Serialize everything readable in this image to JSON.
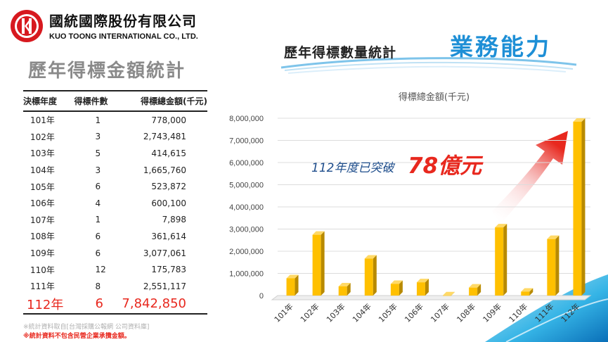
{
  "header": {
    "company_zh": "國統國際股份有限公司",
    "company_en": "KUO TOONG INTERNATIONAL CO., LTD."
  },
  "left": {
    "title": "歷年得標金額統計",
    "columns": [
      "決標年度",
      "得標件數",
      "得標總金額(千元)"
    ],
    "rows": [
      [
        "101年",
        "1",
        "778,000"
      ],
      [
        "102年",
        "3",
        "2,743,481"
      ],
      [
        "103年",
        "5",
        "414,615"
      ],
      [
        "104年",
        "3",
        "1,665,760"
      ],
      [
        "105年",
        "6",
        "523,872"
      ],
      [
        "106年",
        "4",
        "600,100"
      ],
      [
        "107年",
        "1",
        "7,898"
      ],
      [
        "108年",
        "6",
        "361,614"
      ],
      [
        "109年",
        "6",
        "3,077,061"
      ],
      [
        "110年",
        "12",
        "175,783"
      ],
      [
        "111年",
        "8",
        "2,551,117"
      ],
      [
        "112年",
        "6",
        "7,842,850"
      ]
    ],
    "note1": "※統計資料取自[台灣採購公報網 公司資料庫]",
    "note2": "※統計資料不包含民營企業承攬金額。"
  },
  "right": {
    "title": "歷年得標數量統計",
    "accent": "業務能力",
    "annotation_text": "112年度已突破",
    "annotation_value": "78億元"
  },
  "colors": {
    "bar_front": "#ffc000",
    "bar_side": "#b88a00",
    "bar_top": "#ffd966",
    "accent_blue": "#1e8fd6",
    "highlight_red": "#e8281e"
  },
  "chart_data": {
    "type": "bar",
    "title": "得標總金額(千元)",
    "categories": [
      "101年",
      "102年",
      "103年",
      "104年",
      "105年",
      "106年",
      "107年",
      "108年",
      "109年",
      "110年",
      "111年",
      "112年"
    ],
    "values": [
      778000,
      2743481,
      414615,
      1665760,
      523872,
      600100,
      7898,
      361614,
      3077061,
      175783,
      2551117,
      7842850
    ],
    "ylim": [
      0,
      8000000
    ],
    "yticks": [
      "0",
      "1,000,000",
      "2,000,000",
      "3,000,000",
      "4,000,000",
      "5,000,000",
      "6,000,000",
      "7,000,000",
      "8,000,000"
    ],
    "grid": true
  }
}
